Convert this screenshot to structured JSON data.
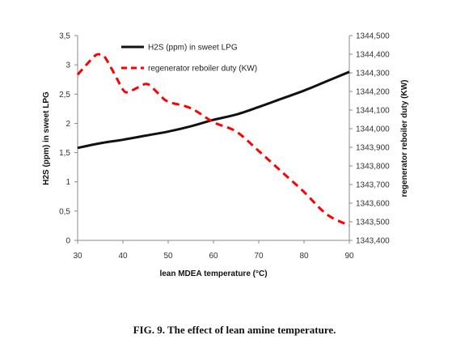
{
  "chart_data": {
    "type": "line",
    "xlabel": "lean MDEA temperature (°C)",
    "ylabel_left": "H2S (ppm) in sweet LPG",
    "ylabel_right": "regenerator reboiler duty (KW)",
    "x_ticks": [
      "30",
      "40",
      "50",
      "60",
      "70",
      "80",
      "90"
    ],
    "y_left_ticks": [
      "0",
      "0,5",
      "1",
      "1,5",
      "2",
      "2,5",
      "3",
      "3,5"
    ],
    "y_right_ticks": [
      "1343,400",
      "1343,500",
      "1343,600",
      "1343,700",
      "1343,800",
      "1343,900",
      "1344,000",
      "1344,100",
      "1344,200",
      "1344,300",
      "1344,400",
      "1344,500"
    ],
    "xlim": [
      30,
      90
    ],
    "ylim_left": [
      0,
      3.5
    ],
    "ylim_right": [
      1343400,
      1344500
    ],
    "grid": false,
    "legend_position": "top",
    "series": [
      {
        "name": "H2S (ppm) in sweet LPG",
        "axis": "left",
        "color": "#111111",
        "style": "solid",
        "x": [
          30,
          35,
          40,
          45,
          50,
          55,
          60,
          65,
          70,
          75,
          80,
          85,
          90
        ],
        "y": [
          1.58,
          1.66,
          1.72,
          1.79,
          1.86,
          1.95,
          2.06,
          2.15,
          2.28,
          2.42,
          2.56,
          2.72,
          2.88
        ]
      },
      {
        "name": "regenerator reboiler duty (KW)",
        "axis": "right",
        "color": "#ff0000",
        "style": "dashed",
        "x": [
          30,
          32,
          34,
          35,
          36,
          38,
          40,
          41,
          42,
          44,
          45,
          46,
          48,
          50,
          55,
          60,
          65,
          70,
          75,
          80,
          85,
          90
        ],
        "y": [
          1344290,
          1344345,
          1344395,
          1344398,
          1344385,
          1344300,
          1344210,
          1344195,
          1344205,
          1344230,
          1344240,
          1344232,
          1344185,
          1344145,
          1344110,
          1344035,
          1343985,
          1343880,
          1343770,
          1343660,
          1343540,
          1343480
        ]
      }
    ]
  },
  "caption": "FIG. 9. The effect of lean amine temperature."
}
